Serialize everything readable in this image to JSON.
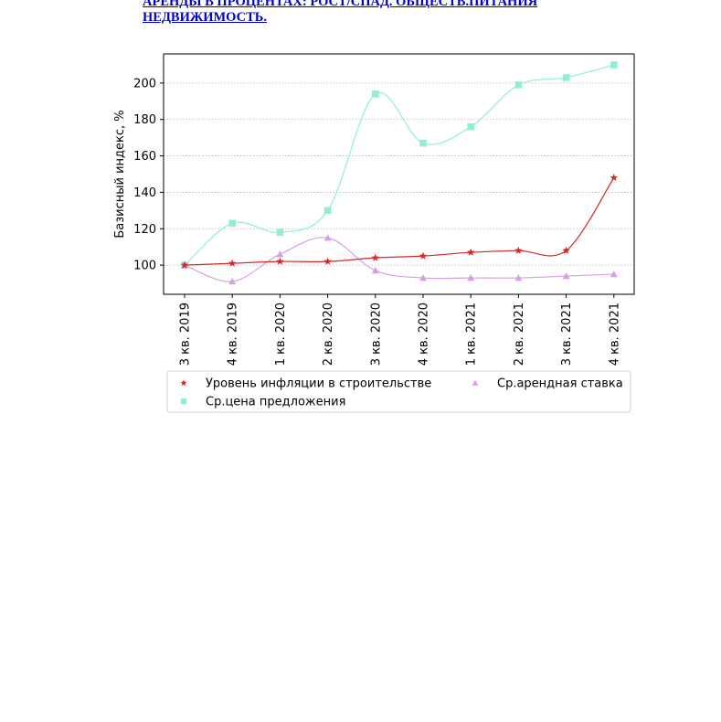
{
  "heading": {
    "line1": "АРЕНДЫ В ПРОЦЕНТАХ: РОСТ/СПАД. ОБЩЕСТВ.ПИТАНИЯ",
    "line2": "НЕДВИЖИМОСТЬ."
  },
  "chart_data": {
    "type": "line",
    "title": "",
    "xlabel": "",
    "ylabel": "Базисный индекс, %",
    "categories": [
      "3 кв. 2019",
      "4 кв. 2019",
      "1 кв. 2020",
      "2 кв. 2020",
      "3 кв. 2020",
      "4 кв. 2020",
      "1 кв. 2021",
      "2 кв. 2021",
      "3 кв. 2021",
      "4 кв. 2021"
    ],
    "ylim": [
      84,
      216
    ],
    "yticks": [
      100,
      120,
      140,
      160,
      180,
      200
    ],
    "grid": "horizontal dotted",
    "legend_position": "below",
    "series": [
      {
        "name": "Уровень инфляции в строительстве",
        "marker": "star",
        "color": "#d62728",
        "values": [
          100,
          101,
          102,
          102,
          104,
          105,
          107,
          108,
          108,
          148
        ]
      },
      {
        "name": "Ср.арендная ставка",
        "marker": "triangle",
        "color": "#d4a0e0",
        "values": [
          100,
          91,
          106,
          115,
          97,
          93,
          93,
          93,
          94,
          95
        ]
      },
      {
        "name": "Ср.цена предложения",
        "marker": "square",
        "color": "#8ef0d0",
        "values": [
          100,
          123,
          118,
          130,
          194,
          167,
          176,
          199,
          203,
          210
        ]
      }
    ]
  }
}
